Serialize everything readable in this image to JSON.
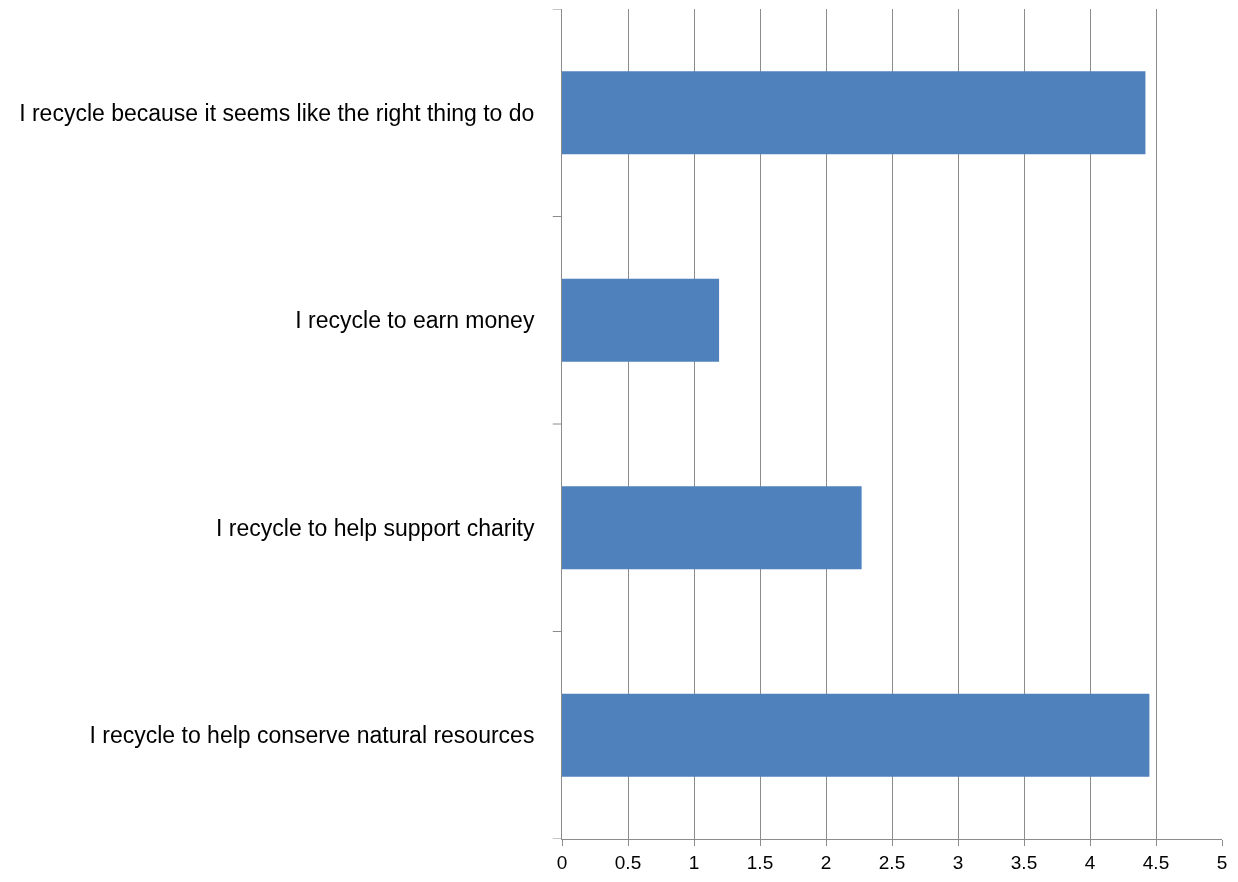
{
  "chart_data": {
    "type": "bar",
    "orientation": "horizontal",
    "categories": [
      "I recycle because it seems like the right thing to do",
      "I recycle to earn money",
      "I recycle to help support charity",
      "I recycle to help conserve natural resources"
    ],
    "values": [
      4.42,
      1.19,
      2.27,
      4.45
    ],
    "color": "#4f81bd",
    "xlim": [
      0,
      5
    ],
    "xticks": [
      0,
      0.5,
      1,
      1.5,
      2,
      2.5,
      3,
      3.5,
      4,
      4.5,
      5
    ],
    "grid": "x"
  }
}
